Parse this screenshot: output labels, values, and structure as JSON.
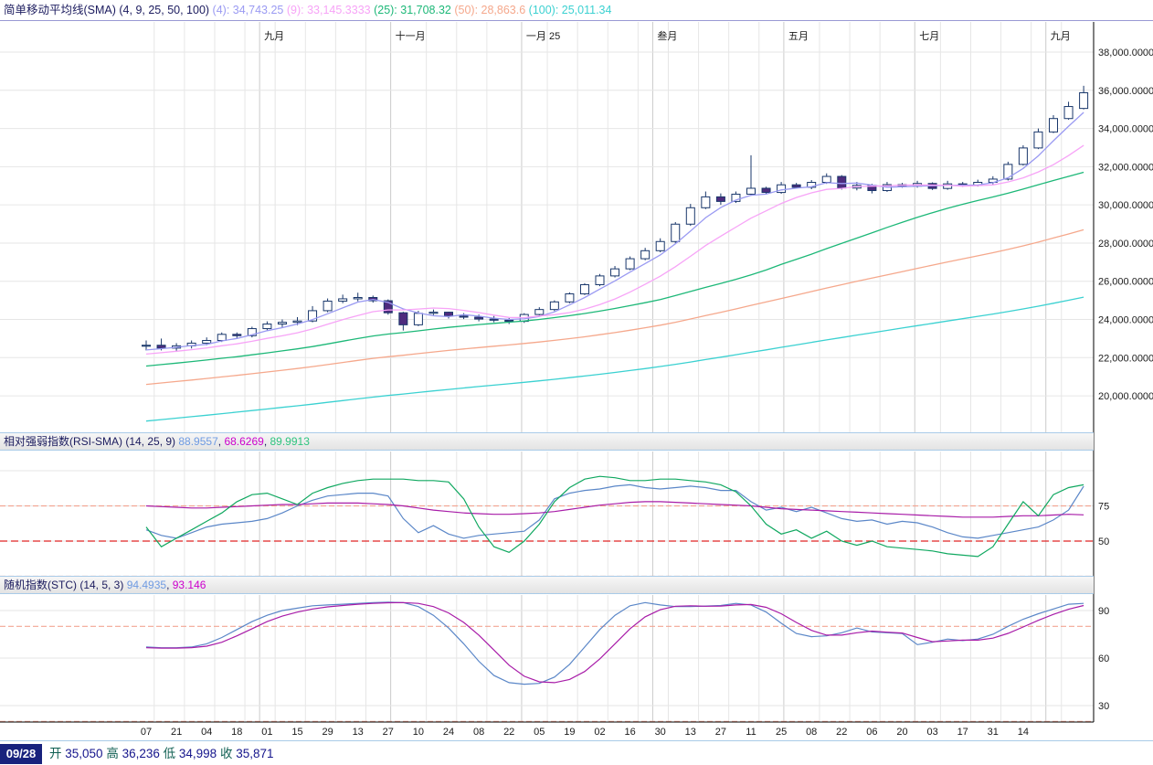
{
  "header": {
    "runs": [
      {
        "text": "简单移动平均线(SMA) (4, 9, 25, 50, 100) ",
        "color": "#1b1b5e"
      },
      {
        "text": "(4): 34,743.25 ",
        "color": "#9a9af2"
      },
      {
        "text": "(9): 33,145.3333 ",
        "color": "#f7a4f7"
      },
      {
        "text": "(25): 31,708.32 ",
        "color": "#1db878"
      },
      {
        "text": "(50): 28,863.6 ",
        "color": "#f5a88c"
      },
      {
        "text": "(100): 25,011.34",
        "color": "#3bd1d1"
      }
    ]
  },
  "panels": {
    "rsi": {
      "runs": [
        {
          "text": "相对强弱指数(RSI-SMA) (14, 25, 9) ",
          "color": "#1b1b5e"
        },
        {
          "text": "88.9557",
          "color": "#6f9be2"
        },
        {
          "text": ", ",
          "color": "#1b1b5e"
        },
        {
          "text": "68.6269",
          "color": "#cc00cc"
        },
        {
          "text": ", ",
          "color": "#1b1b5e"
        },
        {
          "text": "89.9913",
          "color": "#2ec47e"
        }
      ]
    },
    "stc": {
      "runs": [
        {
          "text": "随机指数(STC) (14, 5, 3) ",
          "color": "#1b1b5e"
        },
        {
          "text": "94.4935",
          "color": "#6f9be2"
        },
        {
          "text": ", ",
          "color": "#1b1b5e"
        },
        {
          "text": "93.146",
          "color": "#cc00cc"
        }
      ]
    }
  },
  "status": {
    "date": "09/28",
    "runs": [
      {
        "text": "开 ",
        "color": "#0f5f52"
      },
      {
        "text": "35,050 ",
        "color": "#15158c"
      },
      {
        "text": "高 ",
        "color": "#0f5f52"
      },
      {
        "text": "36,236 ",
        "color": "#15158c"
      },
      {
        "text": "低 ",
        "color": "#0f5f52"
      },
      {
        "text": "34,998 ",
        "color": "#15158c"
      },
      {
        "text": "收 ",
        "color": "#0f5f52"
      },
      {
        "text": "35,871",
        "color": "#15158c"
      }
    ]
  },
  "chart_data": [
    {
      "type": "candlestick",
      "title": "简单移动平均线(SMA) (4, 9, 25, 50, 100)",
      "x_labels": [
        "07",
        "21",
        "04",
        "18",
        "01",
        "15",
        "29",
        "13",
        "27",
        "10",
        "24",
        "08",
        "22",
        "05",
        "19",
        "02",
        "16",
        "30",
        "13",
        "27",
        "11",
        "25",
        "08",
        "22",
        "06",
        "20",
        "03",
        "17",
        "31",
        "14"
      ],
      "month_labels": [
        {
          "text": "九月",
          "index": 7.5
        },
        {
          "text": "十一月",
          "index": 16.17
        },
        {
          "text": "一月 25",
          "index": 24.83
        },
        {
          "text": "叁月",
          "index": 33.5
        },
        {
          "text": "五月",
          "index": 42.17
        },
        {
          "text": "七月",
          "index": 50.83
        },
        {
          "text": "九月",
          "index": 59.5
        }
      ],
      "open": [
        22600,
        22650,
        22500,
        22620,
        22760,
        22900,
        23220,
        23150,
        23520,
        23760,
        23850,
        23920,
        24460,
        24960,
        25080,
        25150,
        24980,
        24350,
        23720,
        24320,
        24380,
        24180,
        24120,
        24020,
        23960,
        23900,
        24260,
        24520,
        24920,
        25340,
        25820,
        26280,
        26650,
        27180,
        27600,
        28080,
        28990,
        29850,
        30420,
        30180,
        30560,
        30870,
        30650,
        31050,
        30920,
        31180,
        31490,
        30880,
        31020,
        30750,
        31060,
        30980,
        31120,
        30860,
        31100,
        31020,
        31180,
        31350,
        32120,
        32980,
        33820,
        34520,
        35050
      ],
      "high": [
        22900,
        23000,
        22760,
        22900,
        23060,
        23320,
        23320,
        23620,
        23900,
        24000,
        24120,
        24700,
        25100,
        25300,
        25400,
        25250,
        25050,
        24400,
        24450,
        24520,
        24400,
        24330,
        24260,
        24180,
        24080,
        24330,
        24640,
        25000,
        25420,
        25900,
        26380,
        26800,
        27300,
        27750,
        28250,
        29100,
        30050,
        30700,
        30600,
        30700,
        32600,
        30950,
        31200,
        31150,
        31300,
        31650,
        31560,
        31200,
        31100,
        31200,
        31150,
        31260,
        31180,
        31260,
        31200,
        31320,
        31500,
        32260,
        33120,
        34000,
        34700,
        35400,
        36236
      ],
      "low": [
        22380,
        22380,
        22300,
        22480,
        22650,
        22820,
        22980,
        23060,
        23400,
        23600,
        23700,
        23850,
        24380,
        24850,
        24950,
        24880,
        24250,
        23420,
        23650,
        24230,
        24050,
        24020,
        23900,
        23850,
        23760,
        23820,
        24180,
        24440,
        24850,
        25280,
        25740,
        26200,
        26580,
        27100,
        27520,
        28000,
        28900,
        29780,
        30000,
        30100,
        30480,
        30550,
        30580,
        30850,
        30820,
        31100,
        30800,
        30760,
        30600,
        30680,
        30900,
        30900,
        30780,
        30790,
        30940,
        30960,
        31080,
        31280,
        32060,
        32920,
        33760,
        34460,
        34998
      ],
      "close": [
        22650,
        22500,
        22620,
        22760,
        22900,
        23220,
        23150,
        23520,
        23760,
        23850,
        23920,
        24460,
        24960,
        25080,
        25150,
        24980,
        24350,
        23720,
        24320,
        24380,
        24180,
        24120,
        24020,
        23960,
        23900,
        24260,
        24520,
        24920,
        25340,
        25820,
        26280,
        26650,
        27180,
        27600,
        28080,
        28990,
        29850,
        30420,
        30180,
        30560,
        30870,
        30650,
        31050,
        30920,
        31180,
        31490,
        30880,
        31020,
        30750,
        31060,
        30980,
        31120,
        30860,
        31100,
        31020,
        31180,
        31350,
        32120,
        32980,
        33820,
        34520,
        35150,
        35871
      ],
      "sma": [
        {
          "period": 4,
          "color": "#9a9af2",
          "current": 34743.25
        },
        {
          "period": 9,
          "color": "#f7a4f7",
          "current": 33145.3333
        },
        {
          "period": 25,
          "color": "#1db878",
          "current": 31708.32
        },
        {
          "period": 50,
          "color": "#f5a88c",
          "current": 28863.6
        },
        {
          "period": 100,
          "color": "#3bd1d1",
          "current": 25011.34
        }
      ],
      "prehistory": {
        "start": 14800,
        "end": 22400,
        "count": 100
      },
      "ylim": [
        19000,
        38600
      ],
      "y_ticks": [
        {
          "label": "38,000.0000",
          "value": 38000
        },
        {
          "label": "36,000.0000",
          "value": 36000
        },
        {
          "label": "34,000.0000",
          "value": 34000
        },
        {
          "label": "32,000.0000",
          "value": 32000
        },
        {
          "label": "30,000.0000",
          "value": 30000
        },
        {
          "label": "28,000.0000",
          "value": 28000
        },
        {
          "label": "26,000.0000",
          "value": 26000
        },
        {
          "label": "24,000.0000",
          "value": 24000
        },
        {
          "label": "22,000.0000",
          "value": 22000
        },
        {
          "label": "20,000.0000",
          "value": 20000
        }
      ],
      "bull_fill": "#ffffff",
      "bear_fill": "#4e2b7e",
      "candle_outline": "#19376b",
      "last_bar": {
        "date": "09/28",
        "open": 35050,
        "high": 36236,
        "low": 34998,
        "close": 35871
      }
    },
    {
      "type": "line",
      "title": "相对强弱指数(RSI-SMA) (14, 25, 9)",
      "y_ticks": [
        {
          "label": "75",
          "value": 75
        },
        {
          "label": "50",
          "value": 50
        }
      ],
      "grid_levels": [
        100,
        75,
        50,
        25
      ],
      "dashed_levels": [
        {
          "value": 75,
          "color": "#f2a694",
          "dash": "6 3"
        },
        {
          "value": 50,
          "color": "#e02424",
          "dash": "8 4"
        },
        {
          "value": 25,
          "color": "#f2a694",
          "dash": "6 3"
        }
      ],
      "series": [
        {
          "name": "RSI-14",
          "color": "#5b87c8",
          "values": [
            58,
            54,
            52,
            56,
            60,
            62,
            63,
            64,
            66,
            70,
            75,
            79,
            82,
            83,
            84,
            84,
            82,
            66,
            56,
            61,
            55,
            52,
            54,
            55,
            56,
            57,
            65,
            80,
            84,
            86,
            87,
            89,
            90,
            88,
            87,
            88,
            89,
            88,
            86,
            86,
            78,
            72,
            74,
            71,
            74,
            70,
            66,
            64,
            65,
            62,
            64,
            63,
            60,
            56,
            53,
            52,
            54,
            56,
            58,
            60,
            65,
            72,
            88.96
          ]
        },
        {
          "name": "RSI-SMA-25",
          "color": "#a81ca8",
          "values": [
            75,
            74.5,
            74,
            73.5,
            73.5,
            74,
            74.5,
            75,
            75.5,
            76,
            76,
            76.5,
            77,
            77,
            77,
            76.5,
            76,
            75,
            73.5,
            72,
            71,
            70,
            69.5,
            69,
            69,
            69.5,
            70,
            71,
            72.5,
            74,
            75.5,
            76.5,
            77.5,
            78,
            78,
            77.5,
            77,
            76.5,
            76,
            75.5,
            75,
            74,
            73,
            72.5,
            72,
            71.5,
            71,
            70.5,
            70,
            69.5,
            69,
            68.5,
            68,
            67.5,
            67,
            67,
            67,
            67.5,
            68,
            68,
            68.5,
            69,
            68.63
          ]
        },
        {
          "name": "RSI-SMA-9",
          "color": "#10a860",
          "values": [
            60,
            46,
            52,
            58,
            64,
            70,
            78,
            83,
            84,
            80,
            76,
            84,
            88,
            91,
            93,
            94,
            94,
            94,
            93,
            93,
            92,
            80,
            60,
            46,
            42,
            50,
            62,
            78,
            88,
            94,
            96,
            95,
            93,
            93,
            94,
            94,
            93,
            92,
            90,
            85,
            75,
            62,
            55,
            58,
            52,
            57,
            50,
            47,
            50,
            46,
            45,
            44,
            43,
            41,
            40,
            39,
            46,
            62,
            78,
            68,
            83,
            88,
            89.99
          ]
        }
      ]
    },
    {
      "type": "line",
      "title": "随机指数(STC) (14, 5, 3)",
      "y_ticks": [
        {
          "label": "90",
          "value": 90
        },
        {
          "label": "60",
          "value": 60
        },
        {
          "label": "30",
          "value": 30
        }
      ],
      "grid_levels": [
        90,
        60,
        30
      ],
      "dashed_levels": [
        {
          "value": 80,
          "color": "#f2a694",
          "dash": "6 3"
        },
        {
          "value": 20,
          "color": "#f2a694",
          "dash": "6 3"
        }
      ],
      "series": [
        {
          "name": "%K",
          "color": "#5b87c8",
          "values": [
            67,
            66.5,
            66.5,
            67,
            69,
            73,
            78,
            83,
            87,
            90,
            91.5,
            93,
            93.5,
            94,
            94.5,
            95,
            95.3,
            95,
            92.5,
            87,
            79,
            69,
            58,
            49,
            44.5,
            43.5,
            44,
            48,
            56,
            67,
            78,
            87,
            93,
            95,
            93.5,
            92.5,
            92.5,
            92.8,
            93.2,
            94.5,
            93.5,
            89,
            82,
            75.5,
            73.5,
            74,
            76,
            79,
            76.5,
            76,
            75.5,
            68.5,
            70,
            72,
            71,
            72,
            75,
            80,
            84.5,
            88,
            91,
            94,
            94.49
          ]
        },
        {
          "name": "%D",
          "color": "#a81ca8",
          "values": [
            66.5,
            66.3,
            66.3,
            66.6,
            67.5,
            70,
            74,
            78.5,
            83,
            86.5,
            89,
            91,
            92.3,
            93.2,
            94,
            94.5,
            94.9,
            95,
            94.5,
            92.5,
            88.5,
            82.5,
            74.5,
            65,
            55.5,
            48.5,
            45,
            44.5,
            46.5,
            51.5,
            59.5,
            69,
            78.5,
            86,
            90.5,
            92.7,
            93,
            92.7,
            92.8,
            93.5,
            93.8,
            92,
            88,
            82.5,
            77.5,
            74.5,
            74.5,
            76,
            77,
            76.3,
            75.8,
            73,
            70.3,
            70.8,
            71.3,
            71.3,
            72.6,
            75.6,
            79.6,
            83.8,
            87.6,
            90.8,
            93.15
          ]
        }
      ]
    }
  ],
  "colors": {
    "grid_light": "#e6e6e6",
    "grid_month": "#cbcbcb",
    "axis": "#000000",
    "tick_text": "#1a1a1a",
    "panel_border": "#a9cbe8",
    "badge_bg": "#18227d"
  }
}
